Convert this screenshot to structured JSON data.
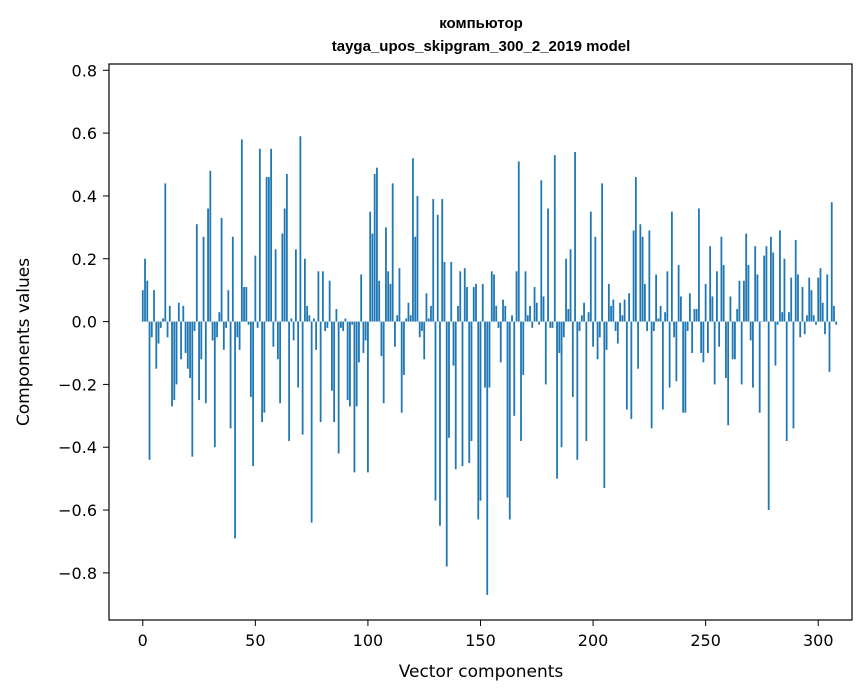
{
  "chart_data": {
    "type": "bar",
    "title_lines": [
      "компьютор",
      "tayga_upos_skipgram_300_2_2019 model"
    ],
    "xlabel": "Vector components",
    "ylabel": "Components values",
    "xlim": [
      -15,
      315
    ],
    "ylim": [
      -0.95,
      0.82
    ],
    "xticks": [
      0,
      50,
      100,
      150,
      200,
      250,
      300
    ],
    "yticks": [
      -0.8,
      -0.6,
      -0.4,
      -0.2,
      0.0,
      0.2,
      0.4,
      0.6,
      0.8
    ],
    "ytick_labels": [
      "−0.8",
      "−0.6",
      "−0.4",
      "−0.2",
      "0.0",
      "0.2",
      "0.4",
      "0.6",
      "0.8"
    ],
    "bar_color": "#1f77b4",
    "grid": false,
    "values": [
      0.1,
      0.2,
      0.13,
      -0.44,
      -0.05,
      0.1,
      -0.15,
      -0.07,
      -0.02,
      0.01,
      0.44,
      -0.05,
      0.05,
      -0.27,
      -0.25,
      -0.2,
      0.06,
      -0.12,
      0.05,
      -0.1,
      -0.15,
      -0.18,
      -0.43,
      -0.03,
      0.31,
      -0.25,
      -0.12,
      0.27,
      -0.26,
      0.36,
      0.48,
      -0.06,
      -0.4,
      -0.05,
      0.03,
      0.33,
      -0.09,
      -0.02,
      0.1,
      -0.34,
      0.27,
      -0.69,
      -0.05,
      -0.09,
      0.58,
      0.11,
      0.11,
      -0.01,
      -0.24,
      -0.46,
      0.21,
      -0.02,
      0.55,
      -0.32,
      -0.29,
      0.46,
      0.46,
      0.55,
      -0.08,
      0.23,
      -0.12,
      -0.26,
      0.28,
      0.36,
      0.47,
      -0.38,
      0.01,
      -0.06,
      0.23,
      -0.21,
      0.59,
      -0.36,
      0.2,
      0.05,
      0.02,
      -0.64,
      0.01,
      -0.09,
      0.16,
      -0.32,
      0.16,
      -0.03,
      -0.02,
      0.13,
      -0.22,
      -0.32,
      0.04,
      -0.42,
      -0.02,
      -0.03,
      0.01,
      -0.25,
      -0.27,
      -0.01,
      -0.48,
      -0.27,
      -0.13,
      0.15,
      -0.1,
      -0.06,
      -0.48,
      0.35,
      0.28,
      0.47,
      0.49,
      0.13,
      -0.11,
      -0.26,
      0.3,
      0.16,
      0.12,
      0.44,
      -0.08,
      0.02,
      0.17,
      -0.29,
      -0.17,
      0.01,
      0.06,
      0.02,
      0.52,
      0.27,
      0.4,
      -0.05,
      -0.03,
      -0.12,
      0.09,
      0.01,
      0.05,
      0.39,
      -0.57,
      0.34,
      -0.65,
      0.39,
      0.19,
      -0.78,
      -0.37,
      0.19,
      -0.14,
      -0.47,
      0.05,
      0.16,
      -0.46,
      0.17,
      0.11,
      -0.45,
      -0.38,
      0.11,
      0.12,
      -0.63,
      -0.57,
      0.12,
      -0.21,
      -0.87,
      -0.21,
      0.16,
      0.15,
      0.05,
      -0.02,
      -0.13,
      0.07,
      0.05,
      -0.56,
      -0.63,
      0.02,
      -0.3,
      0.16,
      0.51,
      -0.38,
      -0.17,
      0.16,
      0.02,
      0.05,
      -0.02,
      0.11,
      0.06,
      -0.01,
      0.45,
      0.08,
      -0.2,
      0.36,
      -0.02,
      -0.02,
      0.53,
      -0.5,
      -0.1,
      -0.4,
      -0.05,
      0.2,
      0.04,
      0.23,
      -0.24,
      0.54,
      -0.44,
      -0.03,
      0.02,
      0.06,
      -0.38,
      0.03,
      0.35,
      -0.08,
      0.27,
      -0.12,
      -0.05,
      0.44,
      -0.53,
      -0.09,
      0.12,
      0.05,
      0.07,
      -0.03,
      -0.07,
      0.06,
      0.02,
      0.07,
      -0.28,
      0.09,
      -0.31,
      0.29,
      0.46,
      -0.15,
      0.31,
      0.27,
      0.12,
      -0.03,
      0.29,
      -0.34,
      -0.03,
      0.15,
      0.01,
      0.05,
      -0.28,
      0.03,
      0.16,
      -0.21,
      0.35,
      -0.05,
      -0.19,
      0.18,
      0.08,
      -0.29,
      -0.29,
      -0.03,
      0.09,
      -0.1,
      0.04,
      0.04,
      0.36,
      -0.1,
      -0.13,
      0.12,
      -0.1,
      0.24,
      0.08,
      -0.2,
      0.16,
      -0.08,
      0.27,
      0.18,
      -0.18,
      -0.33,
      0.08,
      -0.12,
      -0.12,
      0.04,
      0.13,
      -0.2,
      0.13,
      0.28,
      0.18,
      -0.06,
      -0.21,
      0.24,
      0.15,
      -0.29,
      0.0,
      0.21,
      0.24,
      -0.6,
      0.27,
      0.22,
      -0.14,
      -0.01,
      0.29,
      0.03,
      0.2,
      -0.38,
      0.03,
      0.14,
      -0.34,
      0.26,
      0.15,
      -0.05,
      0.11,
      -0.04,
      0.02,
      0.14,
      0.1,
      0.02,
      -0.01,
      0.14,
      0.17,
      0.06,
      -0.04,
      0.15,
      -0.16,
      0.38,
      0.05,
      -0.01
    ]
  }
}
